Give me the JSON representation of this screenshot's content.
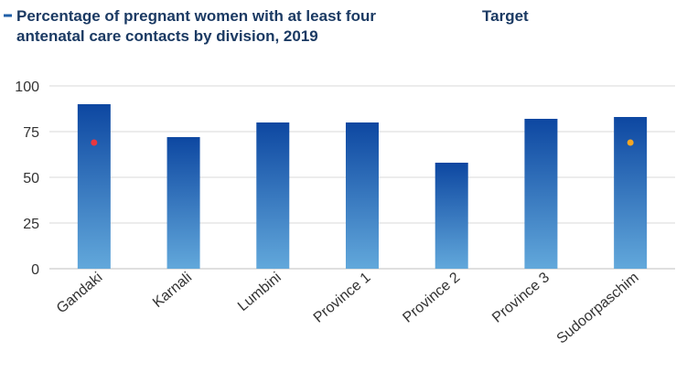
{
  "legend": {
    "bar_label_line1": "Percentage of pregnant women with at least four",
    "bar_label_line2": "antenatal care contacts by division, 2019",
    "target_label": "Target"
  },
  "colors": {
    "bar_top": "#0d47a1",
    "bar_bottom": "#62a8db",
    "target_start": "#e8373f",
    "target_end": "#f5a623",
    "legend_text": "#1b3a63"
  },
  "chart_data": {
    "type": "bar",
    "categories": [
      "Gandaki",
      "Karnali",
      "Lumbini",
      "Province 1",
      "Province 2",
      "Province 3",
      "Sudoorpaschim"
    ],
    "series": [
      {
        "name": "Percentage of pregnant women with at least four antenatal care contacts by division, 2019",
        "values": [
          90,
          72,
          80,
          80,
          58,
          82,
          83
        ]
      }
    ],
    "target": {
      "name": "Target",
      "value": 69
    },
    "ylim": [
      0,
      100
    ],
    "yticks": [
      0,
      25,
      50,
      75,
      100
    ],
    "grid": true,
    "legend_position": "top"
  }
}
